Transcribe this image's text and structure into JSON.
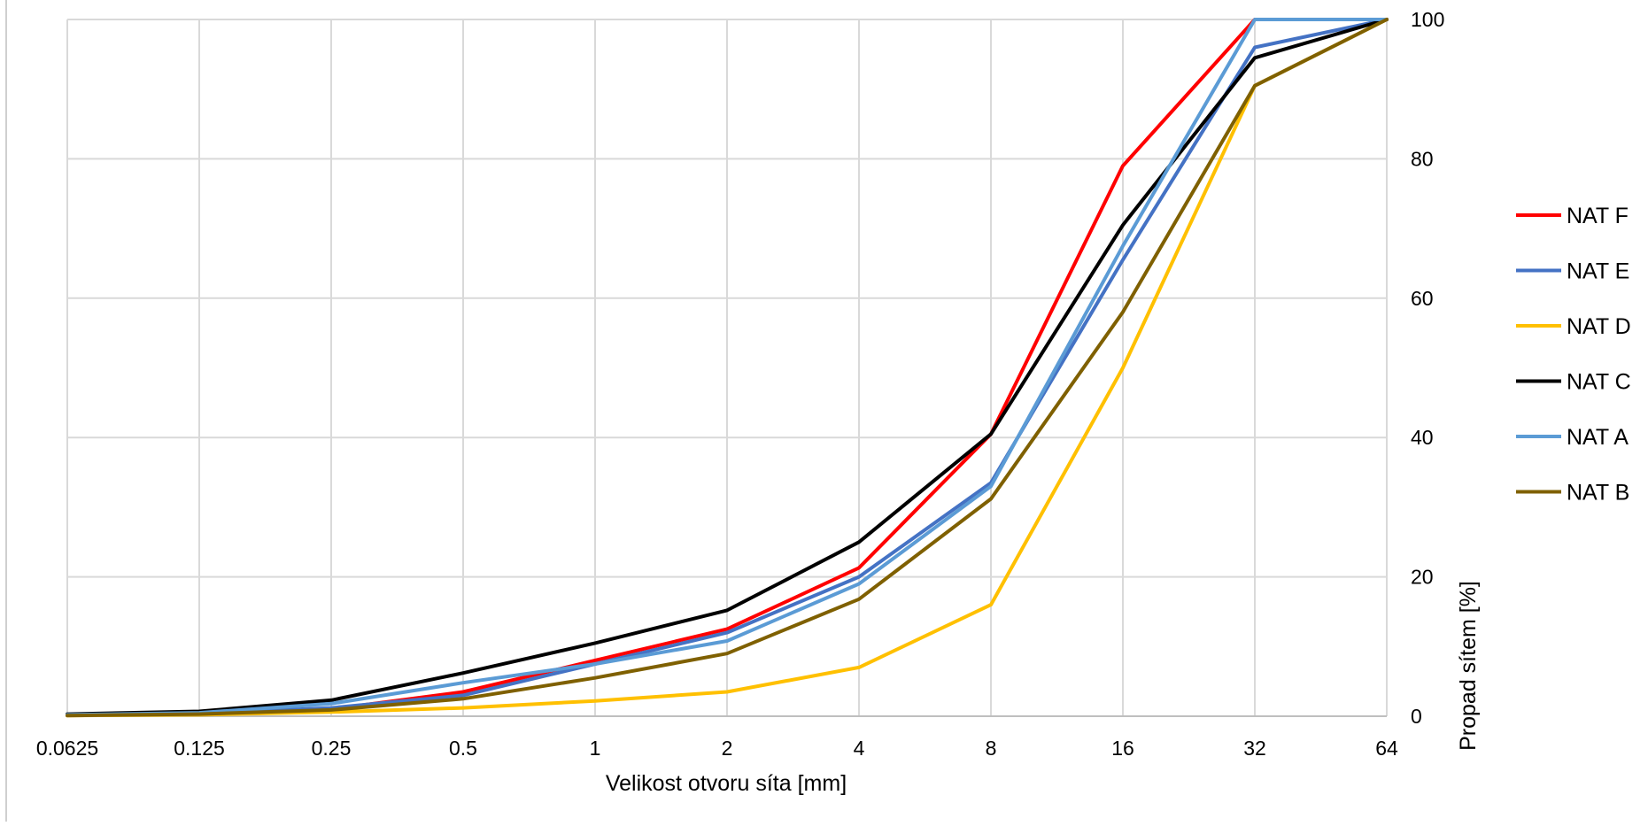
{
  "chart_data": {
    "type": "line",
    "title": "",
    "xlabel": "Velikost otvoru síta [mm]",
    "ylabel": "Propad sítem [%]",
    "x_scale": "log2",
    "x": [
      0.0625,
      0.125,
      0.25,
      0.5,
      1,
      2,
      4,
      8,
      16,
      32,
      64
    ],
    "x_tick_labels": [
      "0.0625",
      "0.125",
      "0.25",
      "0.5",
      "1",
      "2",
      "4",
      "8",
      "16",
      "32",
      "64"
    ],
    "ylim": [
      0,
      100
    ],
    "y_ticks": [
      0,
      20,
      40,
      60,
      80,
      100
    ],
    "y_axis_side": "right",
    "grid": true,
    "legend_position": "right",
    "series": [
      {
        "name": "NAT F",
        "color": "#ff0000",
        "values": [
          0.2,
          0.4,
          1.0,
          3.5,
          8.0,
          12.5,
          21.3,
          40.5,
          79.0,
          100,
          100
        ]
      },
      {
        "name": "NAT E",
        "color": "#4472c4",
        "values": [
          0.2,
          0.4,
          1.2,
          3.0,
          7.5,
          12.0,
          20.0,
          33.5,
          65.5,
          96.0,
          100
        ]
      },
      {
        "name": "NAT D",
        "color": "#ffc000",
        "values": [
          0.1,
          0.2,
          0.6,
          1.2,
          2.2,
          3.5,
          7.0,
          16.0,
          50.0,
          90.5,
          100
        ]
      },
      {
        "name": "NAT C",
        "color": "#000000",
        "values": [
          0.3,
          0.7,
          2.3,
          6.2,
          10.5,
          15.2,
          25.0,
          40.5,
          70.5,
          94.5,
          100
        ]
      },
      {
        "name": "NAT A",
        "color": "#5b9bd5",
        "values": [
          0.2,
          0.5,
          1.8,
          4.8,
          7.5,
          10.8,
          19.0,
          33.0,
          67.5,
          100,
          100
        ]
      },
      {
        "name": "NAT B",
        "color": "#7f6000",
        "values": [
          0.1,
          0.3,
          0.9,
          2.5,
          5.5,
          9.0,
          16.8,
          31.2,
          58.0,
          90.5,
          100
        ]
      }
    ]
  }
}
